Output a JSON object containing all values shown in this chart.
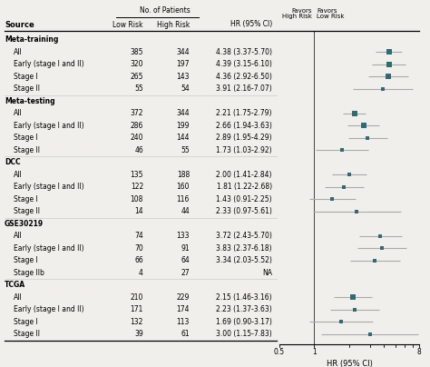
{
  "groups": [
    {
      "name": "Meta-training",
      "rows": [
        {
          "label": "All",
          "low_risk": 385,
          "high_risk": 344,
          "hr_text": "4.38 (3.37-5.70)",
          "hr": 4.38,
          "ci_low": 3.37,
          "ci_high": 5.7
        },
        {
          "label": "Early (stage I and II)",
          "low_risk": 320,
          "high_risk": 197,
          "hr_text": "4.39 (3.15-6.10)",
          "hr": 4.39,
          "ci_low": 3.15,
          "ci_high": 6.1
        },
        {
          "label": "Stage I",
          "low_risk": 265,
          "high_risk": 143,
          "hr_text": "4.36 (2.92-6.50)",
          "hr": 4.36,
          "ci_low": 2.92,
          "ci_high": 6.5
        },
        {
          "label": "Stage II",
          "low_risk": 55,
          "high_risk": 54,
          "hr_text": "3.91 (2.16-7.07)",
          "hr": 3.91,
          "ci_low": 2.16,
          "ci_high": 7.07
        }
      ]
    },
    {
      "name": "Meta-testing",
      "rows": [
        {
          "label": "All",
          "low_risk": 372,
          "high_risk": 344,
          "hr_text": "2.21 (1.75-2.79)",
          "hr": 2.21,
          "ci_low": 1.75,
          "ci_high": 2.79
        },
        {
          "label": "Early (stage I and II)",
          "low_risk": 286,
          "high_risk": 199,
          "hr_text": "2.66 (1.94-3.63)",
          "hr": 2.66,
          "ci_low": 1.94,
          "ci_high": 3.63
        },
        {
          "label": "Stage I",
          "low_risk": 240,
          "high_risk": 144,
          "hr_text": "2.89 (1.95-4.29)",
          "hr": 2.89,
          "ci_low": 1.95,
          "ci_high": 4.29
        },
        {
          "label": "Stage II",
          "low_risk": 46,
          "high_risk": 55,
          "hr_text": "1.73 (1.03-2.92)",
          "hr": 1.73,
          "ci_low": 1.03,
          "ci_high": 2.92
        }
      ]
    },
    {
      "name": "DCC",
      "rows": [
        {
          "label": "All",
          "low_risk": 135,
          "high_risk": 188,
          "hr_text": "2.00 (1.41-2.84)",
          "hr": 2.0,
          "ci_low": 1.41,
          "ci_high": 2.84
        },
        {
          "label": "Early (stage I and II)",
          "low_risk": 122,
          "high_risk": 160,
          "hr_text": "1.81 (1.22-2.68)",
          "hr": 1.81,
          "ci_low": 1.22,
          "ci_high": 2.68
        },
        {
          "label": "Stage I",
          "low_risk": 108,
          "high_risk": 116,
          "hr_text": "1.43 (0.91-2.25)",
          "hr": 1.43,
          "ci_low": 0.91,
          "ci_high": 2.25
        },
        {
          "label": "Stage II",
          "low_risk": 14,
          "high_risk": 44,
          "hr_text": "2.33 (0.97-5.61)",
          "hr": 2.33,
          "ci_low": 0.97,
          "ci_high": 5.61
        }
      ]
    },
    {
      "name": "GSE30219",
      "rows": [
        {
          "label": "All",
          "low_risk": 74,
          "high_risk": 133,
          "hr_text": "3.72 (2.43-5.70)",
          "hr": 3.72,
          "ci_low": 2.43,
          "ci_high": 5.7
        },
        {
          "label": "Early (stage I and II)",
          "low_risk": 70,
          "high_risk": 91,
          "hr_text": "3.83 (2.37-6.18)",
          "hr": 3.83,
          "ci_low": 2.37,
          "ci_high": 6.18
        },
        {
          "label": "Stage I",
          "low_risk": 66,
          "high_risk": 64,
          "hr_text": "3.34 (2.03-5.52)",
          "hr": 3.34,
          "ci_low": 2.03,
          "ci_high": 5.52
        },
        {
          "label": "Stage IIb",
          "low_risk": 4,
          "high_risk": 27,
          "hr_text": "NA",
          "hr": null,
          "ci_low": null,
          "ci_high": null
        }
      ]
    },
    {
      "name": "TCGA",
      "rows": [
        {
          "label": "All",
          "low_risk": 210,
          "high_risk": 229,
          "hr_text": "2.15 (1.46-3.16)",
          "hr": 2.15,
          "ci_low": 1.46,
          "ci_high": 3.16
        },
        {
          "label": "Early (stage I and II)",
          "low_risk": 171,
          "high_risk": 174,
          "hr_text": "2.23 (1.37-3.63)",
          "hr": 2.23,
          "ci_low": 1.37,
          "ci_high": 3.63
        },
        {
          "label": "Stage I",
          "low_risk": 132,
          "high_risk": 113,
          "hr_text": "1.69 (0.90-3.17)",
          "hr": 1.69,
          "ci_low": 0.9,
          "ci_high": 3.17
        },
        {
          "label": "Stage II",
          "low_risk": 39,
          "high_risk": 61,
          "hr_text": "3.00 (1.15-7.83)",
          "hr": 3.0,
          "ci_low": 1.15,
          "ci_high": 7.83
        }
      ]
    }
  ],
  "x_label": "HR (95% CI)",
  "x_min": 0.5,
  "x_max": 8.0,
  "marker_color": "#2e6b72",
  "line_color": "#aaaaaa",
  "bg_color": "#f0efeb",
  "tick_vals": [
    0.5,
    1.0,
    2.0,
    3.0,
    4.0,
    5.0,
    6.0,
    7.0,
    8.0
  ],
  "tick_labels_show": [
    0.5,
    1.0,
    8.0
  ]
}
